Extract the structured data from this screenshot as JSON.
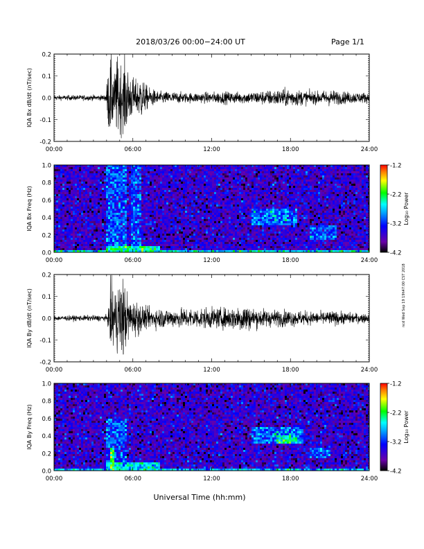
{
  "header": {
    "title": "2018/03/26  00:00−24:00 UT",
    "page": "Page 1/1"
  },
  "footer": {
    "xlabel": "Universal Time (hh:mm)"
  },
  "side_stamp": "ncd Wed Sep 19 19h47:00 CST 2018",
  "colorbar": {
    "label": "Log₁₀ Power",
    "ticks": [
      "-1.2",
      "-2.2",
      "-3.2",
      "-4.2"
    ],
    "range": [
      -4.2,
      -1.2
    ]
  },
  "chart_data": [
    {
      "type": "line",
      "ylabel": "IQA Bx dB/dt (nT/sec)",
      "xticks": [
        "00:00",
        "06:00",
        "12:00",
        "18:00",
        "24:00"
      ],
      "yticks": [
        "0.2",
        "0.1",
        "0.0",
        "-0.1",
        "-0.2"
      ],
      "xlim": [
        0,
        24
      ],
      "ylim": [
        -0.2,
        0.2
      ],
      "envelope": {
        "x": [
          0,
          3.9,
          4.05,
          4.2,
          4.3,
          4.45,
          4.6,
          4.8,
          5.0,
          5.2,
          5.4,
          5.6,
          5.8,
          6.0,
          6.3,
          6.6,
          6.9,
          7.2,
          7.6,
          8.0,
          9.0,
          10.0,
          11.0,
          12.0,
          13.0,
          14.0,
          15.0,
          16.0,
          17.0,
          18.0,
          19.0,
          20.0,
          21.0,
          22.0,
          23.0,
          24.0
        ],
        "amp": [
          0.012,
          0.014,
          0.09,
          0.2,
          0.2,
          0.16,
          0.12,
          0.2,
          0.2,
          0.14,
          0.2,
          0.15,
          0.12,
          0.1,
          0.08,
          0.12,
          0.07,
          0.05,
          0.04,
          0.03,
          0.03,
          0.025,
          0.025,
          0.028,
          0.03,
          0.028,
          0.03,
          0.035,
          0.04,
          0.045,
          0.035,
          0.03,
          0.04,
          0.03,
          0.028,
          0.025
        ]
      }
    },
    {
      "type": "heatmap",
      "ylabel": "IQA Bx Freq (Hz)",
      "xticks": [
        "00:00",
        "06:00",
        "12:00",
        "18:00",
        "24:00"
      ],
      "yticks": [
        "1.0",
        "0.8",
        "0.6",
        "0.4",
        "0.2",
        "0.0"
      ],
      "xlim": [
        0,
        24
      ],
      "ylim": [
        0,
        1.0
      ],
      "zlim": [
        -4.2,
        -1.2
      ],
      "background_log_power": -3.6,
      "features": [
        {
          "x0": 3.9,
          "x1": 5.6,
          "f0": 0.0,
          "f1": 1.0,
          "log_power": -3.1
        },
        {
          "x0": 5.9,
          "x1": 6.6,
          "f0": 0.0,
          "f1": 1.0,
          "log_power": -3.1
        },
        {
          "x0": 3.9,
          "x1": 8.0,
          "f0": 0.0,
          "f1": 0.08,
          "log_power": -2.4
        },
        {
          "x0": 0.0,
          "x1": 24.0,
          "f0": 0.0,
          "f1": 0.02,
          "log_power": -2.6
        },
        {
          "x0": 15.0,
          "x1": 18.5,
          "f0": 0.32,
          "f1": 0.5,
          "log_power": -3.0
        },
        {
          "x0": 19.5,
          "x1": 21.5,
          "f0": 0.15,
          "f1": 0.3,
          "log_power": -3.1
        }
      ]
    },
    {
      "type": "line",
      "ylabel": "IQA By dB/dt (nT/sec)",
      "xticks": [
        "00:00",
        "06:00",
        "12:00",
        "18:00",
        "24:00"
      ],
      "yticks": [
        "0.2",
        "0.1",
        "0.0",
        "-0.1",
        "-0.2"
      ],
      "xlim": [
        0,
        24
      ],
      "ylim": [
        -0.2,
        0.2
      ],
      "envelope": {
        "x": [
          0,
          4.0,
          4.2,
          4.35,
          4.5,
          4.7,
          4.9,
          5.1,
          5.3,
          5.5,
          5.7,
          6.0,
          6.3,
          6.6,
          7.0,
          7.5,
          8.0,
          9.0,
          10.0,
          11.0,
          12.0,
          13.0,
          14.0,
          14.5,
          15.0,
          16.0,
          17.0,
          18.0,
          19.0,
          20.0,
          21.0,
          22.0,
          23.0,
          24.0
        ],
        "amp": [
          0.012,
          0.015,
          0.06,
          0.2,
          0.2,
          0.12,
          0.2,
          0.2,
          0.2,
          0.14,
          0.1,
          0.08,
          0.09,
          0.07,
          0.05,
          0.05,
          0.05,
          0.045,
          0.05,
          0.05,
          0.05,
          0.05,
          0.06,
          0.08,
          0.05,
          0.045,
          0.04,
          0.04,
          0.035,
          0.03,
          0.035,
          0.03,
          0.025,
          0.022
        ]
      }
    },
    {
      "type": "heatmap",
      "ylabel": "IQA By Freq (Hz)",
      "xticks": [
        "00:00",
        "06:00",
        "12:00",
        "18:00",
        "24:00"
      ],
      "yticks": [
        "1.0",
        "0.8",
        "0.6",
        "0.4",
        "0.2",
        "0.0"
      ],
      "xlim": [
        0,
        24
      ],
      "ylim": [
        0,
        1.0
      ],
      "zlim": [
        -4.2,
        -1.2
      ],
      "background_log_power": -3.6,
      "features": [
        {
          "x0": 4.0,
          "x1": 5.5,
          "f0": 0.0,
          "f1": 0.6,
          "log_power": -3.1
        },
        {
          "x0": 4.2,
          "x1": 4.6,
          "f0": 0.0,
          "f1": 0.25,
          "log_power": -2.2
        },
        {
          "x0": 0.0,
          "x1": 24.0,
          "f0": 0.0,
          "f1": 0.03,
          "log_power": -2.8
        },
        {
          "x0": 4.0,
          "x1": 8.0,
          "f0": 0.0,
          "f1": 0.1,
          "log_power": -2.6
        },
        {
          "x0": 15.0,
          "x1": 19.0,
          "f0": 0.3,
          "f1": 0.5,
          "log_power": -3.0
        },
        {
          "x0": 17.0,
          "x1": 18.5,
          "f0": 0.32,
          "f1": 0.4,
          "log_power": -2.4
        },
        {
          "x0": 19.5,
          "x1": 21.0,
          "f0": 0.15,
          "f1": 0.25,
          "log_power": -3.1
        }
      ]
    }
  ]
}
